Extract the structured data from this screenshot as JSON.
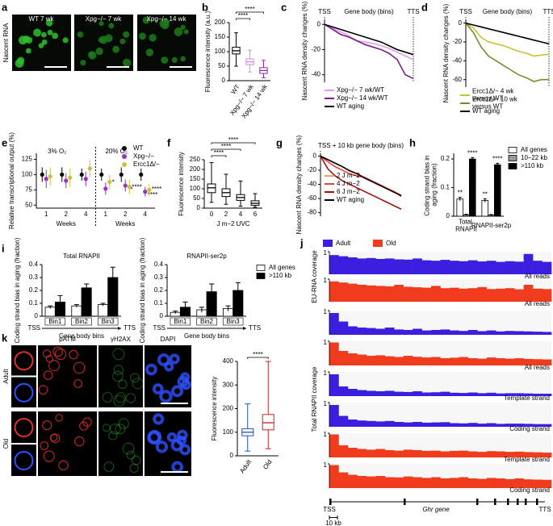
{
  "images": {
    "a": {
      "panel": "a",
      "ylabel": "Nascent RNA",
      "labels": [
        "WT 7 wk",
        "Xpg−/− 7 wk",
        "Xpg−/− 14 wk"
      ]
    },
    "k": {
      "panel": "k",
      "columns": [
        "pATM",
        "γH2AX",
        "DAPI"
      ],
      "rows": [
        "Adult",
        "Old"
      ]
    }
  },
  "chart_data": [
    {
      "panel": "b",
      "type": "box",
      "ylabel": "Fluorescence intensity (a.u.)",
      "categories": [
        "WT",
        "Xpg−/− 7 wk",
        "Xpg−/− 14 wk"
      ],
      "colors": [
        "#000000",
        "#d48be0",
        "#8a2a9e"
      ],
      "boxes": [
        {
          "min": 50,
          "q1": 92,
          "median": 103,
          "q3": 115,
          "max": 165
        },
        {
          "min": 30,
          "q1": 55,
          "median": 65,
          "q3": 75,
          "max": 105
        },
        {
          "min": 10,
          "q1": 25,
          "median": 35,
          "q3": 45,
          "max": 70
        }
      ],
      "ylim": [
        0,
        200
      ],
      "yticks": [
        0,
        50,
        100,
        150,
        200
      ],
      "annotations": [
        "****",
        "****"
      ]
    },
    {
      "panel": "c",
      "type": "line",
      "ylabel": "Nascent RNA density changes (%)",
      "xlabel": "Gene body (bins)",
      "categories": [
        "TSS",
        null,
        null,
        null,
        null,
        null,
        null,
        null,
        null,
        null,
        null,
        "TTS"
      ],
      "series": [
        {
          "name": "Xpg−/− 7 wk/WT",
          "color": "#e49ae8",
          "values": [
            0,
            -3,
            -6,
            -9,
            -13,
            -14,
            -15,
            -17,
            -19,
            -22,
            -25,
            -28
          ]
        },
        {
          "name": "Xpg−/− 14 wk/WT",
          "color": "#7a1f8a",
          "values": [
            0,
            -4,
            -8,
            -10,
            -13,
            -16,
            -18,
            -20,
            -23,
            -28,
            -40,
            -43
          ]
        },
        {
          "name": "WT aging",
          "color": "#000000",
          "values": [
            0,
            -2,
            -4,
            -6,
            -8,
            -10,
            -12,
            -14,
            -17,
            -20,
            -22,
            -24
          ]
        }
      ],
      "ylim": [
        -46,
        4
      ],
      "yticks": [
        0,
        -20,
        -40
      ]
    },
    {
      "panel": "d",
      "type": "line",
      "ylabel": "Nascent RNA density changes (%)",
      "xlabel": "Gene body (bins)",
      "categories": [
        "TSS",
        null,
        null,
        null,
        null,
        null,
        null,
        null,
        null,
        null,
        null,
        "TTS"
      ],
      "series": [
        {
          "name": "Ercc1Δ/− 4 wk versus WT",
          "color": "#c8c23a",
          "values": [
            0,
            -5,
            -15,
            -20,
            -22,
            -24,
            -27,
            -30,
            -32,
            -35,
            -34,
            -33
          ]
        },
        {
          "name": "Ercc1Δ/− 10 wk versus WT",
          "color": "#7d8a2a",
          "values": [
            0,
            -10,
            -25,
            -35,
            -40,
            -45,
            -50,
            -55,
            -58,
            -62,
            -60,
            -60
          ]
        },
        {
          "name": "WT aging",
          "color": "#000000",
          "values": [
            0,
            -2,
            -4,
            -6,
            -8,
            -10,
            -12,
            -14,
            -16,
            -18,
            -20,
            -22
          ]
        }
      ],
      "ylim": [
        -68,
        4
      ],
      "yticks": [
        0,
        -20,
        -40,
        -60
      ]
    },
    {
      "panel": "e",
      "type": "errorbar",
      "ylabel": "Relative transcriptional output (%)",
      "xlabel": "Weeks",
      "groups": [
        "3% O₂",
        "20% O₂"
      ],
      "categories": [
        "1",
        "2",
        "4",
        "1",
        "2",
        "4"
      ],
      "series": [
        {
          "name": "WT",
          "color": "#000000",
          "values": [
            100,
            100,
            100,
            100,
            100,
            100
          ],
          "errors": [
            12,
            12,
            10,
            10,
            12,
            10
          ]
        },
        {
          "name": "Xpg−/−",
          "color": "#9b30c0",
          "values": [
            93,
            90,
            93,
            77,
            82,
            72
          ],
          "errors": [
            15,
            12,
            12,
            10,
            10,
            8
          ],
          "annotations": [
            null,
            null,
            null,
            null,
            "**",
            "****"
          ]
        },
        {
          "name": "Ercc1Δ/−",
          "color": "#c8c23a",
          "values": [
            97,
            95,
            110,
            88,
            80,
            75
          ],
          "errors": [
            15,
            15,
            15,
            12,
            12,
            10
          ],
          "annotations": [
            null,
            null,
            null,
            "*",
            "****",
            "****"
          ]
        }
      ],
      "ylim": [
        45,
        135
      ],
      "yticks": [
        50,
        75,
        100,
        125
      ]
    },
    {
      "panel": "f",
      "type": "box",
      "ylabel": "Fluorescence intensity",
      "xlabel": "J m−2 UVC",
      "categories": [
        "0",
        "2",
        "4",
        "6"
      ],
      "colors": [
        "#000000",
        "#000000",
        "#000000",
        "#000000"
      ],
      "boxes": [
        {
          "min": 30,
          "q1": 80,
          "median": 105,
          "q3": 125,
          "max": 235
        },
        {
          "min": 20,
          "q1": 60,
          "median": 80,
          "q3": 100,
          "max": 175
        },
        {
          "min": 10,
          "q1": 40,
          "median": 55,
          "q3": 70,
          "max": 140
        },
        {
          "min": 5,
          "q1": 15,
          "median": 25,
          "q3": 38,
          "max": 75
        }
      ],
      "ylim": [
        0,
        250
      ],
      "yticks": [
        0,
        50,
        100,
        150,
        200,
        250
      ],
      "annotations": [
        "****",
        "****",
        "****"
      ]
    },
    {
      "panel": "g",
      "type": "line",
      "ylabel": "Nascent RNA density changes (%)",
      "xlabel": "TSS + 10 kb gene body (bins)",
      "categories": [
        null,
        null,
        null,
        null,
        null,
        null,
        null,
        null,
        null,
        null,
        null,
        null
      ],
      "series": [
        {
          "name": "2 J m−2",
          "color": "#f0a060",
          "values": [
            0,
            -5,
            -10,
            -15,
            -20,
            -25,
            -30,
            -35,
            -40,
            -45,
            -50,
            -55
          ]
        },
        {
          "name": "4 J m−2",
          "color": "#e84040",
          "values": [
            0,
            -8,
            -15,
            -20,
            -25,
            -28,
            -30,
            -35,
            -40,
            -45,
            -50,
            -57
          ]
        },
        {
          "name": "6 J m−2",
          "color": "#a01010",
          "values": [
            0,
            -18,
            -28,
            -35,
            -40,
            -45,
            -50,
            -55,
            -60,
            -65,
            -70,
            -75
          ]
        },
        {
          "name": "WT aging",
          "color": "#000000",
          "values": [
            0,
            -5,
            -10,
            -15,
            -21,
            -25,
            -31,
            -36,
            -41,
            -46,
            -51,
            -56
          ]
        }
      ],
      "ylim": [
        -85,
        4
      ],
      "yticks": [
        0,
        -20,
        -40,
        -60,
        -80
      ]
    },
    {
      "panel": "h",
      "type": "bar",
      "ylabel": "Coding strand bias in aging (fraction)",
      "categories": [
        "Total RNAPII",
        "RNAPII-ser2p"
      ],
      "series": [
        {
          "name": "All genes",
          "color": "#ffffff",
          "values": [
            0.06,
            0.055
          ],
          "errors": [
            0.006,
            0.006
          ],
          "annotations": [
            "**",
            "**"
          ]
        },
        {
          "name": "10–22 kb",
          "color": "#999999",
          "values": [
            0.005,
            0.004
          ],
          "errors": [
            0.002,
            0.002
          ]
        },
        {
          "name": ">110 kb",
          "color": "#000000",
          "values": [
            0.2,
            0.18
          ],
          "errors": [
            0.005,
            0.005
          ],
          "annotations": [
            "****",
            "****"
          ]
        }
      ],
      "ylim": [
        0,
        0.22
      ],
      "yticks": [
        0,
        0.1,
        0.2
      ]
    },
    {
      "panel": "i",
      "type": "bar",
      "title": "Total RNAPII",
      "ylabel": "Coding strand bias in aging (fraction)",
      "xlabel": "Gene body bins",
      "x_start": "TSS",
      "x_end": "TTS",
      "categories": [
        "Bin1",
        "Bin2",
        "Bin3"
      ],
      "series": [
        {
          "color": "#ffffff",
          "values": [
            0.07,
            0.08,
            0.09
          ],
          "errors": [
            0.01,
            0.01,
            0.01
          ]
        },
        {
          "color": "#000000",
          "values": [
            0.11,
            0.22,
            0.3
          ],
          "errors": [
            0.05,
            0.03,
            0.08
          ]
        }
      ],
      "ylim": [
        0,
        0.4
      ],
      "yticks": [
        0,
        0.1,
        0.2,
        0.3,
        0.4
      ]
    },
    {
      "type": "bar",
      "title": "RNAPII-ser2p",
      "ylabel": "Coding strand bias in aging (fraction)",
      "xlabel": "Gene body bins",
      "x_start": "TSS",
      "x_end": "TTS",
      "categories": [
        "Bin1",
        "Bin2",
        "Bin3"
      ],
      "series": [
        {
          "name": "All genes",
          "color": "#ffffff",
          "values": [
            0.03,
            0.05,
            0.06
          ],
          "errors": [
            0.01,
            0.02,
            0.02
          ]
        },
        {
          "name": ">110 kb",
          "color": "#000000",
          "values": [
            0.07,
            0.19,
            0.2
          ],
          "errors": [
            0.04,
            0.06,
            0.06
          ]
        }
      ],
      "ylim": [
        0,
        0.4
      ],
      "yticks": [
        0,
        0.1,
        0.2,
        0.3,
        0.4
      ],
      "legend": "right"
    },
    {
      "panel": "j",
      "type": "coverage",
      "legend": [
        {
          "name": "Adult",
          "color": "#3a1fe0"
        },
        {
          "name": "Old",
          "color": "#f03c1c"
        }
      ],
      "ylim": [
        0,
        1
      ],
      "yticks": [
        1
      ],
      "sections": [
        {
          "label": "EU-RNA coverage",
          "tracks": [
            {
              "color": "#3a1fe0",
              "label": "All reads",
              "values": [
                0.85,
                0.8,
                0.75,
                0.7,
                0.72,
                0.68,
                0.7,
                0.66,
                0.65,
                0.7,
                0.62,
                0.6,
                0.64,
                0.6,
                0.58,
                0.62,
                0.57,
                0.6,
                0.55,
                0.58,
                0.56,
                0.9,
                0.6,
                0.55
              ]
            },
            {
              "color": "#f03c1c",
              "label": "All reads",
              "values": [
                0.9,
                0.85,
                0.8,
                0.75,
                0.72,
                0.7,
                0.68,
                0.75,
                0.66,
                0.64,
                0.62,
                0.7,
                0.6,
                0.62,
                0.58,
                0.6,
                0.65,
                0.56,
                0.58,
                0.6,
                0.55,
                0.75,
                0.58,
                0.56
              ]
            }
          ]
        },
        {
          "label": "Total RNAPII coverage",
          "tracks": [
            {
              "color": "#3a1fe0",
              "values": [
                0.9,
                0.55,
                0.35,
                0.3,
                0.28,
                0.25,
                0.3,
                0.22,
                0.2,
                0.25,
                0.18,
                0.2,
                0.22,
                0.18,
                0.16,
                0.2,
                0.15,
                0.18,
                0.14,
                0.16,
                0.15,
                0.14,
                0.13,
                0.12
              ]
            },
            {
              "color": "#f03c1c",
              "label": "All reads",
              "values": [
                0.95,
                0.6,
                0.5,
                0.45,
                0.4,
                0.42,
                0.38,
                0.35,
                0.4,
                0.36,
                0.33,
                0.35,
                0.3,
                0.32,
                0.35,
                0.3,
                0.28,
                0.33,
                0.3,
                0.28,
                0.3,
                0.27,
                0.26,
                0.25
              ]
            },
            {
              "color": "#3a1fe0",
              "label": "Template strand",
              "values": [
                0.9,
                0.4,
                0.3,
                0.25,
                0.22,
                0.2,
                0.22,
                0.18,
                0.17,
                0.2,
                0.15,
                0.16,
                0.18,
                0.14,
                0.13,
                0.15,
                0.12,
                0.14,
                0.11,
                0.12,
                0.12,
                0.11,
                0.1,
                0.1
              ]
            },
            {
              "color": "#3a1fe0",
              "label": "Coding strand",
              "values": [
                0.9,
                0.45,
                0.3,
                0.26,
                0.24,
                0.22,
                0.24,
                0.2,
                0.18,
                0.2,
                0.17,
                0.18,
                0.19,
                0.15,
                0.14,
                0.16,
                0.13,
                0.15,
                0.12,
                0.13,
                0.13,
                0.12,
                0.11,
                0.11
              ]
            },
            {
              "color": "#f03c1c",
              "label": "Template strand",
              "values": [
                0.95,
                0.5,
                0.4,
                0.35,
                0.32,
                0.35,
                0.3,
                0.28,
                0.32,
                0.3,
                0.27,
                0.28,
                0.25,
                0.27,
                0.28,
                0.25,
                0.23,
                0.26,
                0.25,
                0.23,
                0.24,
                0.22,
                0.21,
                0.2
              ]
            },
            {
              "color": "#f03c1c",
              "label": "Coding strand",
              "values": [
                0.95,
                0.65,
                0.55,
                0.5,
                0.48,
                0.5,
                0.45,
                0.44,
                0.48,
                0.45,
                0.42,
                0.45,
                0.4,
                0.42,
                0.45,
                0.4,
                0.38,
                0.42,
                0.4,
                0.37,
                0.4,
                0.36,
                0.35,
                0.34
              ]
            }
          ]
        }
      ],
      "gene": {
        "tss": "TSS",
        "name": "Ghr gene",
        "tts": "TTS",
        "scale": "10 kb"
      }
    },
    {
      "type": "box",
      "ylabel": "Fluorescence intensity",
      "categories": [
        "Adult",
        "Old"
      ],
      "colors": [
        "#2050c0",
        "#d02020"
      ],
      "boxes": [
        {
          "min": 20,
          "q1": 85,
          "median": 100,
          "q3": 115,
          "max": 220
        },
        {
          "min": 30,
          "q1": 110,
          "median": 140,
          "q3": 175,
          "max": 400
        }
      ],
      "ylim": [
        0,
        400
      ],
      "yticks": [
        0,
        100,
        200,
        300,
        400
      ],
      "annotations": [
        "****"
      ]
    }
  ]
}
